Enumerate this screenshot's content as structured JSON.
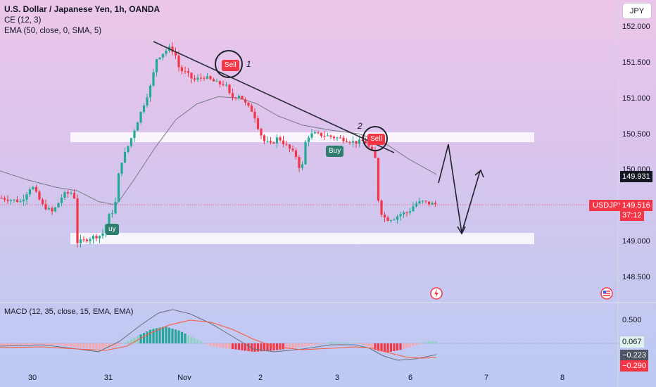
{
  "header": {
    "title": "U.S. Dollar / Japanese Yen, 1h, OANDA",
    "indicator_ce": "CE (12, 3)",
    "indicator_ema": "EMA (50, close, 0, SMA, 5)",
    "macd_label": "MACD (12, 35, close, 15, EMA, EMA)",
    "currency_button": "JPY"
  },
  "price_axis": {
    "ticks": [
      "152.000",
      "151.500",
      "151.000",
      "150.500",
      "150.000",
      "149.000",
      "148.500"
    ]
  },
  "macd_axis": {
    "ticks": [
      "0.500"
    ]
  },
  "time_axis": {
    "ticks": [
      "30",
      "31",
      "Nov",
      "2",
      "3",
      "6",
      "7",
      "8"
    ]
  },
  "tags": {
    "ema_value": "149.931",
    "symbol": "USDJPY",
    "last_price": "149.516",
    "countdown": "37:12",
    "macd_hist": "0.067",
    "macd_line": "−0.223",
    "macd_signal": "−0.290"
  },
  "signals": {
    "sell": "Sell",
    "buy": "Buy",
    "buy_left_visible": "uy"
  },
  "annotations": {
    "label_1": "1",
    "label_2": "2"
  },
  "colors": {
    "up": "#22ab94",
    "down": "#f23645",
    "ema": "#787b86",
    "macd_line": "#6a6d78",
    "signal_line": "#ff5a3c",
    "symbol_tag": "#f23645",
    "ema_tag": "#131722"
  },
  "chart_data": {
    "type": "candlestick",
    "symbol": "USDJPY",
    "timeframe": "1h",
    "price_range": [
      148.4,
      152.05
    ],
    "x_ticks": [
      "30",
      "31",
      "Nov",
      "2",
      "3",
      "6",
      "7",
      "8"
    ],
    "horizontal_zones": [
      [
        150.42,
        150.56
      ],
      [
        148.98,
        149.13
      ]
    ],
    "trendline": [
      [
        151.77,
        "start"
      ],
      [
        150.33,
        "end"
      ]
    ],
    "last_price": 149.516,
    "ema_last": 149.931,
    "key_prices": {
      "low_oct31": 148.85,
      "high_nov1": 151.72,
      "pre_drop": 150.5,
      "post_drop_low": 149.2,
      "last": 149.516
    },
    "macd": {
      "hist": 0.067,
      "macd": -0.223,
      "signal": -0.29
    }
  }
}
